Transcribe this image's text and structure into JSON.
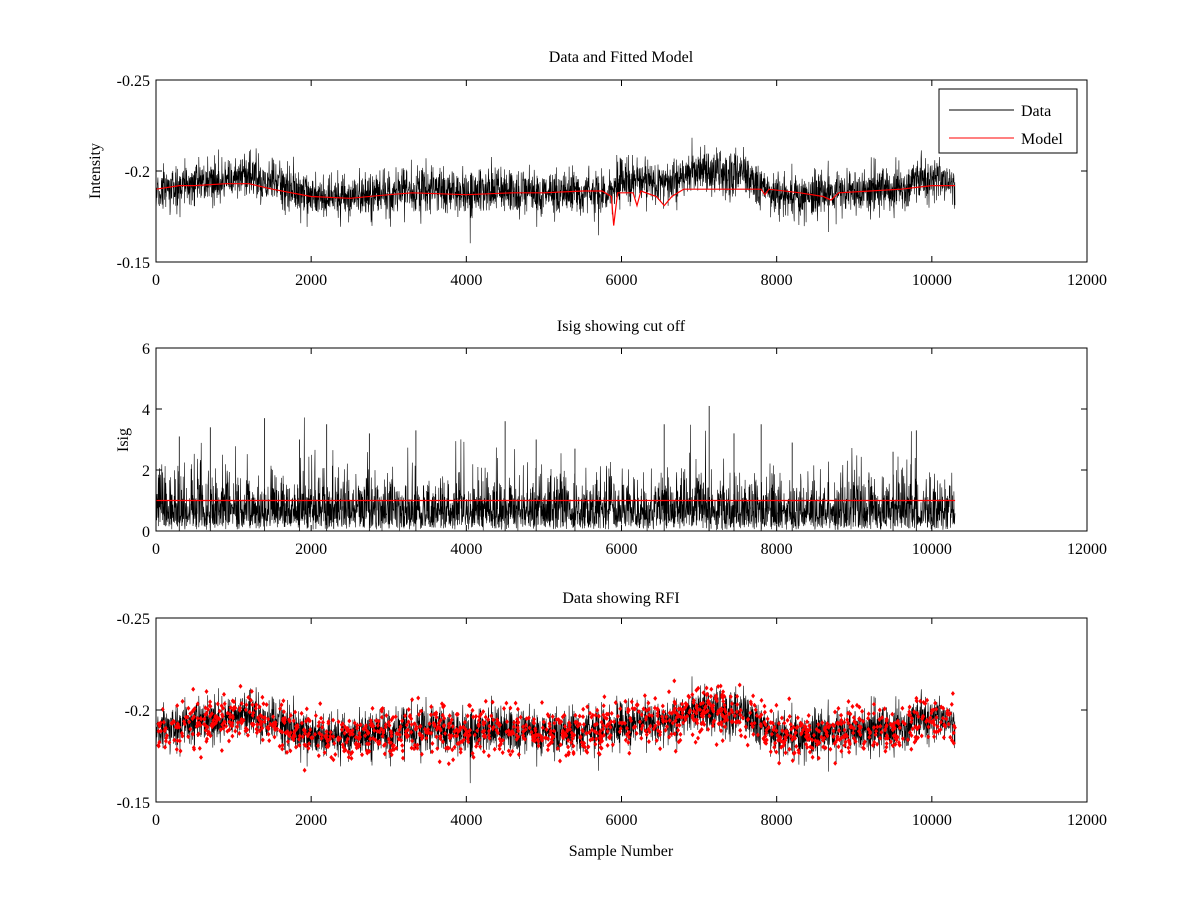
{
  "figure": {
    "background": "#ffffff"
  },
  "chart_data": [
    {
      "type": "line",
      "title": "Data and Fitted Model",
      "xlabel": "",
      "ylabel": "Intensity",
      "xlim": [
        0,
        12000
      ],
      "ylim": [
        -0.25,
        -0.15
      ],
      "x_ticks": [
        0,
        2000,
        4000,
        6000,
        8000,
        10000,
        12000
      ],
      "x_tick_labels": [
        "0",
        "2000",
        "4000",
        "6000",
        "8000",
        "10000",
        "12000"
      ],
      "y_ticks": [
        -0.25,
        -0.2,
        -0.15
      ],
      "y_tick_labels": [
        "-0.25",
        "-0.2",
        "-0.15"
      ],
      "y_reversed": true,
      "n_samples": 10300,
      "series": [
        {
          "name": "Data",
          "color": "#000000",
          "style": "noise",
          "envelope_x": [
            0,
            300,
            500,
            900,
            1200,
            1500,
            2000,
            2500,
            3000,
            3500,
            4000,
            4500,
            5000,
            5500,
            5800,
            6000,
            6500,
            7000,
            7500,
            8000,
            8500,
            9000,
            9500,
            10000,
            10300
          ],
          "envelope_center": [
            -0.188,
            -0.191,
            -0.194,
            -0.195,
            -0.197,
            -0.194,
            -0.186,
            -0.185,
            -0.188,
            -0.19,
            -0.188,
            -0.19,
            -0.187,
            -0.188,
            -0.187,
            -0.195,
            -0.194,
            -0.2,
            -0.199,
            -0.187,
            -0.186,
            -0.189,
            -0.19,
            -0.197,
            -0.193
          ],
          "envelope_spread": 0.011,
          "seed": 11
        },
        {
          "name": "Model",
          "color": "#ff0000",
          "style": "line",
          "x": [
            0,
            300,
            500,
            900,
            1200,
            1500,
            2000,
            2500,
            3000,
            3300,
            4000,
            4600,
            5000,
            5500,
            5750,
            5870,
            5900,
            5950,
            6150,
            6200,
            6250,
            6450,
            6550,
            6650,
            6800,
            7200,
            7600,
            7800,
            7850,
            7900,
            8300,
            8600,
            8700,
            8800,
            9200,
            9600,
            10000,
            10300
          ],
          "values": [
            -0.19,
            -0.192,
            -0.192,
            -0.193,
            -0.193,
            -0.19,
            -0.186,
            -0.185,
            -0.187,
            -0.188,
            -0.187,
            -0.188,
            -0.188,
            -0.189,
            -0.189,
            -0.186,
            -0.17,
            -0.188,
            -0.188,
            -0.181,
            -0.189,
            -0.186,
            -0.181,
            -0.186,
            -0.19,
            -0.19,
            -0.19,
            -0.19,
            -0.187,
            -0.19,
            -0.188,
            -0.186,
            -0.184,
            -0.188,
            -0.189,
            -0.19,
            -0.192,
            -0.192
          ]
        }
      ],
      "legend": {
        "placement": "top-right",
        "entries": [
          {
            "label": "Data",
            "color": "#000000"
          },
          {
            "label": "Model",
            "color": "#ff0000"
          }
        ]
      }
    },
    {
      "type": "line",
      "title": "Isig showing cut off",
      "xlabel": "",
      "ylabel": "Isig",
      "xlim": [
        0,
        12000
      ],
      "ylim": [
        0,
        6
      ],
      "x_ticks": [
        0,
        2000,
        4000,
        6000,
        8000,
        10000,
        12000
      ],
      "x_tick_labels": [
        "0",
        "2000",
        "4000",
        "6000",
        "8000",
        "10000",
        "12000"
      ],
      "y_ticks": [
        0,
        2,
        4,
        6
      ],
      "y_tick_labels": [
        "0",
        "2",
        "4",
        "6"
      ],
      "y_reversed": false,
      "n_samples": 10300,
      "series": [
        {
          "name": "Isig",
          "color": "#000000",
          "style": "noise",
          "base": 0.8,
          "seed": 23,
          "peaks": [
            {
              "x": 1400,
              "value": 3.7
            },
            {
              "x": 300,
              "value": 3.1
            },
            {
              "x": 700,
              "value": 3.4
            },
            {
              "x": 1850,
              "value": 3.0
            },
            {
              "x": 2200,
              "value": 3.5
            },
            {
              "x": 2750,
              "value": 3.2
            },
            {
              "x": 3350,
              "value": 3.3
            },
            {
              "x": 4500,
              "value": 3.6
            },
            {
              "x": 4900,
              "value": 3.0
            },
            {
              "x": 5400,
              "value": 2.7
            },
            {
              "x": 6550,
              "value": 3.5
            },
            {
              "x": 7130,
              "value": 4.1
            },
            {
              "x": 7450,
              "value": 3.2
            },
            {
              "x": 7800,
              "value": 3.5
            },
            {
              "x": 8200,
              "value": 2.9
            },
            {
              "x": 9500,
              "value": 2.6
            },
            {
              "x": 9800,
              "value": 3.3
            }
          ]
        },
        {
          "name": "Cut off",
          "color": "#ff0000",
          "style": "line",
          "x": [
            0,
            10300
          ],
          "values": [
            1.0,
            1.0
          ]
        }
      ]
    },
    {
      "type": "scatter",
      "title": "Data showing RFI",
      "xlabel": "Sample Number",
      "ylabel": "",
      "xlim": [
        0,
        12000
      ],
      "ylim": [
        -0.25,
        -0.15
      ],
      "x_ticks": [
        0,
        2000,
        4000,
        6000,
        8000,
        10000,
        12000
      ],
      "x_tick_labels": [
        "0",
        "2000",
        "4000",
        "6000",
        "8000",
        "10000",
        "12000"
      ],
      "y_ticks": [
        -0.25,
        -0.2,
        -0.15
      ],
      "y_tick_labels": [
        "-0.25",
        "-0.2",
        "-0.15"
      ],
      "y_reversed": true,
      "n_samples": 10300,
      "series": [
        {
          "name": "Data",
          "color": "#000000",
          "style": "noise",
          "envelope_x": [
            0,
            300,
            500,
            900,
            1200,
            1500,
            2000,
            2500,
            3000,
            3500,
            4000,
            4500,
            5000,
            5500,
            6000,
            6500,
            7000,
            7500,
            8000,
            8500,
            9000,
            9500,
            10000,
            10300
          ],
          "envelope_center": [
            -0.188,
            -0.191,
            -0.194,
            -0.195,
            -0.197,
            -0.194,
            -0.186,
            -0.185,
            -0.188,
            -0.19,
            -0.188,
            -0.19,
            -0.187,
            -0.188,
            -0.192,
            -0.194,
            -0.2,
            -0.199,
            -0.187,
            -0.186,
            -0.189,
            -0.19,
            -0.197,
            -0.193
          ],
          "envelope_spread": 0.011,
          "seed": 11
        },
        {
          "name": "RFI",
          "color": "#ff0000",
          "style": "markers",
          "marker": "diamond",
          "seed": 37,
          "count": 1400,
          "envelope_spread": 0.012
        }
      ]
    }
  ]
}
